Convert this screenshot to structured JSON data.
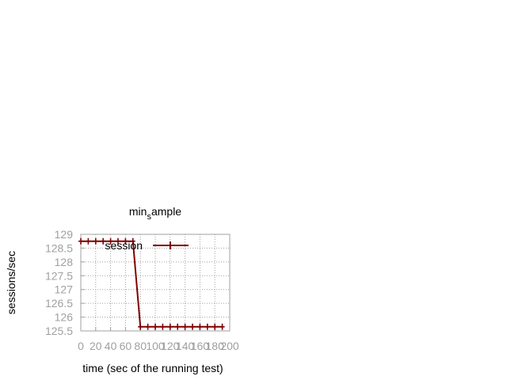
{
  "chart_data": {
    "type": "line",
    "title": "min_sample",
    "title_parts": {
      "main": "min",
      "sub": "s",
      "rest": "ample"
    },
    "xlabel": "time (sec of the running test)",
    "ylabel": "sessions/sec",
    "xlim": [
      0,
      200
    ],
    "ylim": [
      125.5,
      129
    ],
    "xticks": [
      0,
      20,
      40,
      60,
      80,
      100,
      120,
      140,
      160,
      180,
      200
    ],
    "yticks": [
      125.5,
      126,
      126.5,
      127,
      127.5,
      128,
      128.5,
      129
    ],
    "ytick_labels": [
      "125.5",
      "126",
      "126.5",
      "127",
      "127.5",
      "128",
      "128.5",
      "129"
    ],
    "grid": true,
    "legend_position": "top-right",
    "series": [
      {
        "name": "session",
        "color": "#7f0000",
        "marker": "plus",
        "x": [
          0,
          10,
          20,
          30,
          40,
          50,
          60,
          70,
          80,
          90,
          100,
          110,
          120,
          130,
          140,
          150,
          160,
          170,
          180,
          190
        ],
        "y": [
          128.75,
          128.75,
          128.75,
          128.75,
          128.75,
          128.75,
          128.75,
          128.75,
          125.65,
          125.65,
          125.65,
          125.65,
          125.65,
          125.65,
          125.65,
          125.65,
          125.65,
          125.65,
          125.65,
          125.65
        ]
      }
    ]
  }
}
